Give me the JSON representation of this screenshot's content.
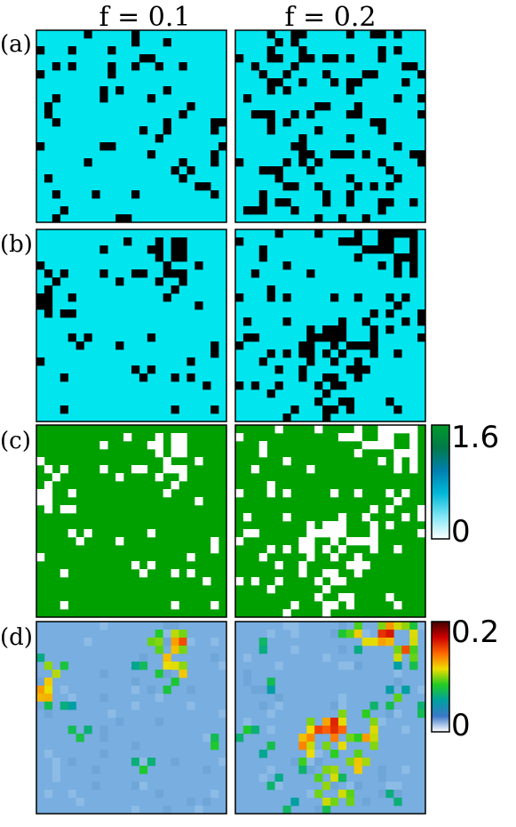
{
  "chart_data": {
    "type": "heatmap",
    "columns": [
      "f = 0.1",
      "f = 0.2"
    ],
    "rows": [
      "(a)",
      "(b)",
      "(c)",
      "(d)"
    ],
    "grid_size": 24,
    "panels": [
      {
        "row": "(a)",
        "column": "f = 0.1",
        "fill_fraction": 0.1,
        "pattern": "random-sparse",
        "colors": {
          "background": "#00e5ee",
          "site": "#000000"
        }
      },
      {
        "row": "(a)",
        "column": "f = 0.2",
        "fill_fraction": 0.2,
        "pattern": "random-sparse",
        "colors": {
          "background": "#00e5ee",
          "site": "#000000"
        }
      },
      {
        "row": "(b)",
        "column": "f = 0.1",
        "fill_fraction": 0.1,
        "pattern": "clustered",
        "colors": {
          "background": "#00e5ee",
          "site": "#000000"
        }
      },
      {
        "row": "(b)",
        "column": "f = 0.2",
        "fill_fraction": 0.2,
        "pattern": "clustered",
        "colors": {
          "background": "#00e5ee",
          "site": "#000000"
        }
      },
      {
        "row": "(c)",
        "column": "f = 0.1",
        "fill_fraction": 0.1,
        "pattern": "clustered",
        "colors": {
          "background": "#00a000",
          "site": "#ffffff"
        },
        "colorbar": "c"
      },
      {
        "row": "(c)",
        "column": "f = 0.2",
        "fill_fraction": 0.2,
        "pattern": "clustered",
        "colors": {
          "background": "#00a000",
          "site": "#ffffff"
        },
        "colorbar": "c"
      },
      {
        "row": "(d)",
        "column": "f = 0.1",
        "fill_fraction": 0.1,
        "pattern": "hotspots",
        "colors": {
          "background": "#78aee0"
        },
        "colorbar": "d"
      },
      {
        "row": "(d)",
        "column": "f = 0.2",
        "fill_fraction": 0.2,
        "pattern": "hotspots",
        "colors": {
          "background": "#78aee0"
        },
        "colorbar": "d"
      }
    ],
    "colorbars": {
      "c": {
        "min": 0,
        "max": 1.6,
        "min_label": "0",
        "max_label": "1.6",
        "stops": [
          "#ffffff",
          "#7fe6f5",
          "#00b8d8",
          "#0080b0",
          "#007a4a",
          "#009a2a"
        ]
      },
      "d": {
        "min": 0,
        "max": 0.2,
        "min_label": "0",
        "max_label": "0.2",
        "stops": [
          "#ffffff",
          "#3a78c8",
          "#00a0a0",
          "#22cc22",
          "#eedd00",
          "#ff6600",
          "#cc0000",
          "#440000"
        ]
      }
    },
    "legend": "right"
  }
}
